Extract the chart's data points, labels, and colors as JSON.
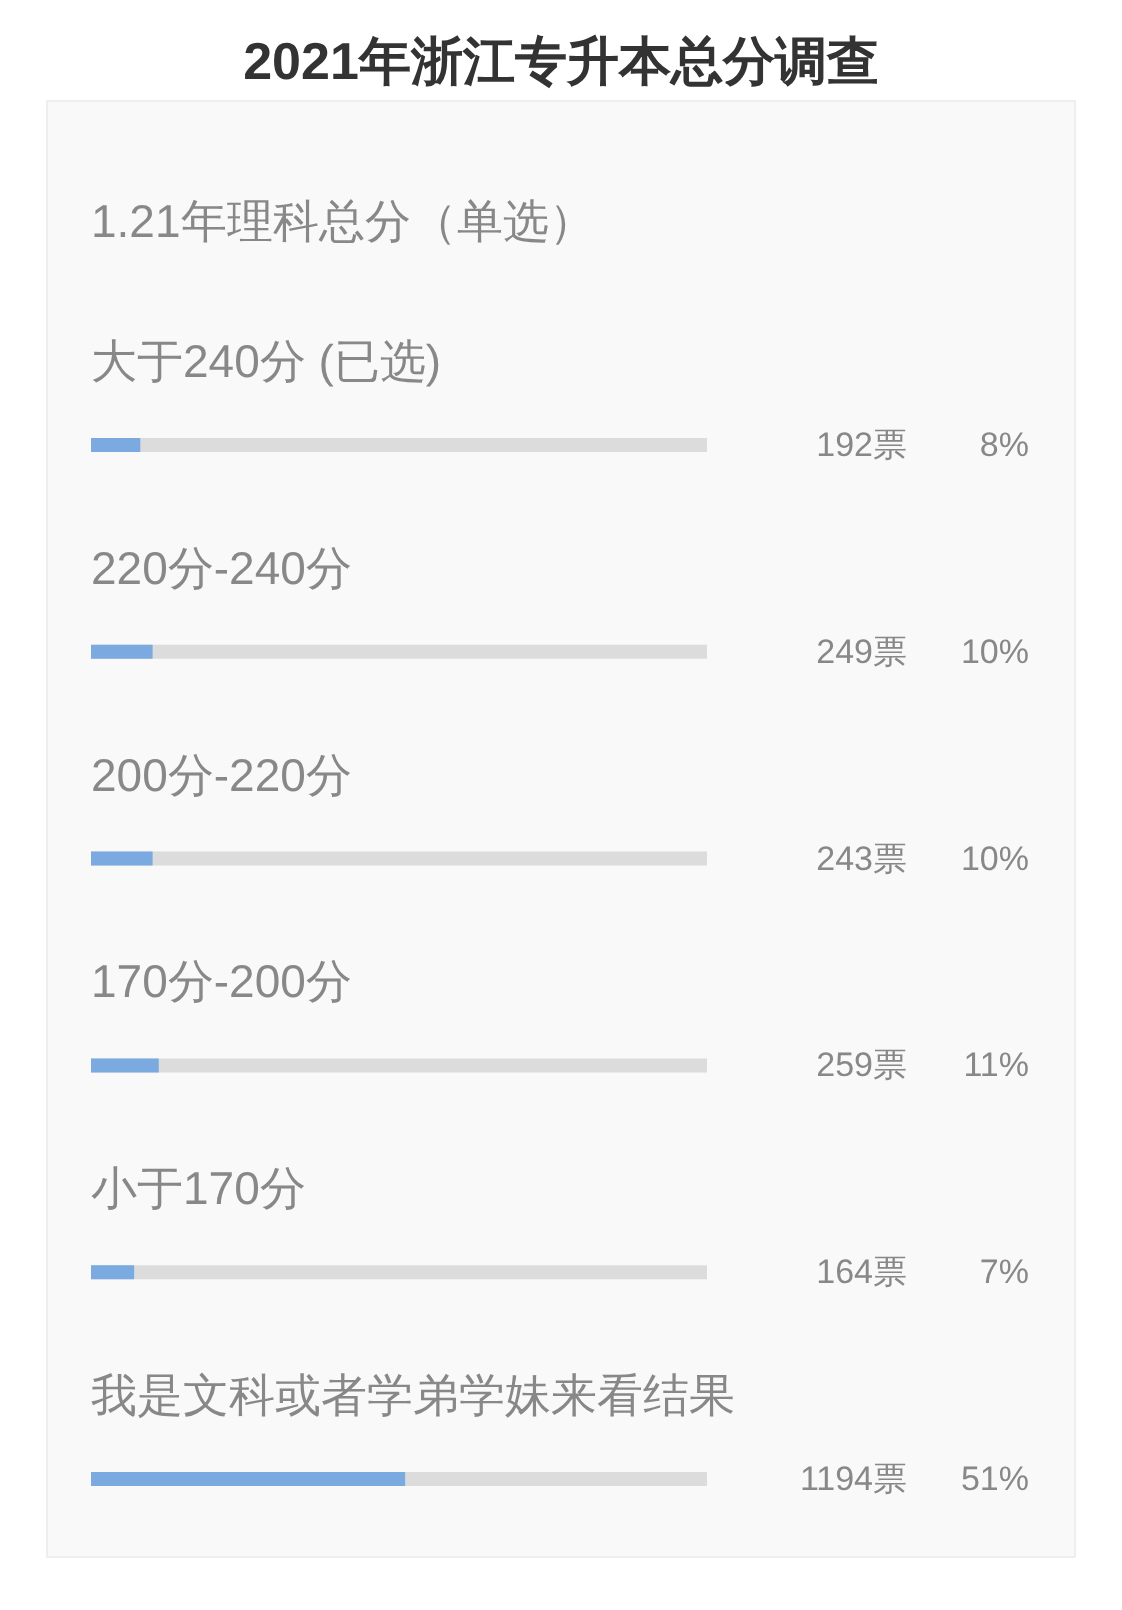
{
  "chart_data": {
    "type": "bar",
    "orientation": "horizontal",
    "title": "2021年浙江专升本总分调查",
    "subtitle": "1.21年理科总分（单选）",
    "categories": [
      "大于240分 (已选)",
      "220分-240分",
      "200分-220分",
      "170分-200分",
      "小于170分",
      "我是文科或者学弟学妹来看结果"
    ],
    "values": [
      8,
      10,
      10,
      11,
      7,
      51
    ],
    "color": "#7aaae0",
    "xlim": [
      0,
      100
    ],
    "value_labels": [
      "8%",
      "10%",
      "10%",
      "11%",
      "7%",
      "51%"
    ],
    "annotations": [
      "192票",
      "249票",
      "243票",
      "259票",
      "164票",
      "1194票"
    ]
  }
}
